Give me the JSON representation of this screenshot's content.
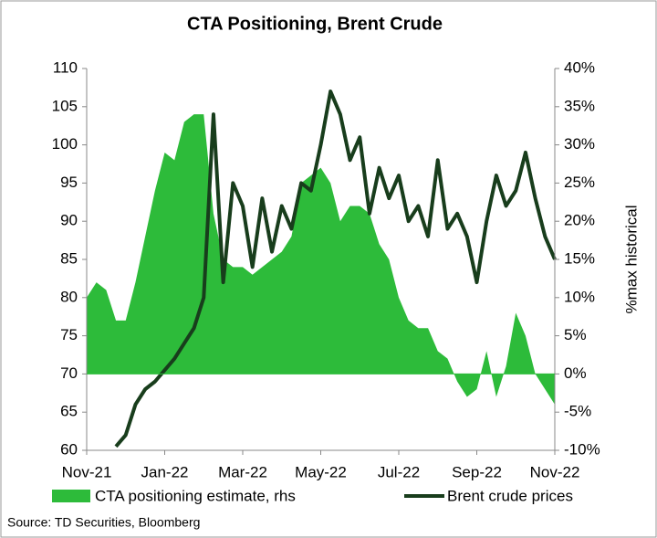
{
  "chart_data": {
    "type": "line",
    "title": "CTA Positioning, Brent Crude",
    "y2_label": "%max historical",
    "source": "Source: TD Securities, Bloomberg",
    "categories": [
      "Nov-21",
      null,
      null,
      null,
      null,
      null,
      null,
      null,
      "Jan-22",
      null,
      null,
      null,
      null,
      null,
      null,
      null,
      "Mar-22",
      null,
      null,
      null,
      null,
      null,
      null,
      null,
      "May-22",
      null,
      null,
      null,
      null,
      null,
      null,
      null,
      "Jul-22",
      null,
      null,
      null,
      null,
      null,
      null,
      null,
      "Sep-22",
      null,
      null,
      null,
      null,
      null,
      null,
      null,
      "Nov-22"
    ],
    "series": [
      {
        "name": "CTA positioning estimate, rhs",
        "color": "#2dbb3a",
        "type": "area",
        "axis": "y2",
        "values": [
          10,
          12,
          11,
          7,
          7,
          12,
          18,
          24,
          29,
          28,
          33,
          34,
          34,
          21,
          15,
          14,
          14,
          13,
          14,
          15,
          16,
          18,
          25,
          26,
          27,
          25,
          20,
          22,
          22,
          21,
          17,
          15,
          10,
          7,
          6,
          6,
          3,
          2,
          -1,
          -3,
          -2,
          3,
          -3,
          1,
          8,
          5,
          0,
          -2,
          -4
        ]
      },
      {
        "name": "Brent crude prices",
        "color": "#183d1c",
        "type": "line",
        "values": [
          null,
          null,
          null,
          60.5,
          62,
          66,
          68,
          69,
          70.5,
          72,
          74,
          76,
          80,
          104,
          82,
          95,
          92,
          84,
          93,
          86,
          92,
          89,
          95,
          94,
          100,
          107,
          104,
          98,
          101,
          91,
          97,
          93,
          96,
          90,
          92,
          88,
          98,
          89,
          91,
          88,
          82,
          90,
          96,
          92,
          94,
          99,
          93,
          88,
          85
        ]
      }
    ],
    "ylim": [
      60,
      110
    ],
    "yticks": [
      60,
      65,
      70,
      75,
      80,
      85,
      90,
      95,
      100,
      105,
      110
    ],
    "y2lim": [
      -10,
      40
    ],
    "y2ticks": [
      {
        "value": -10,
        "label": "-10%"
      },
      {
        "value": -5,
        "label": "-5%"
      },
      {
        "value": 0,
        "label": "0%"
      },
      {
        "value": 5,
        "label": "5%"
      },
      {
        "value": 10,
        "label": "10%"
      },
      {
        "value": 15,
        "label": "15%"
      },
      {
        "value": 20,
        "label": "20%"
      },
      {
        "value": 25,
        "label": "25%"
      },
      {
        "value": 30,
        "label": "30%"
      },
      {
        "value": 35,
        "label": "35%"
      },
      {
        "value": 40,
        "label": "40%"
      }
    ],
    "grid": false,
    "legend": "bottom"
  }
}
